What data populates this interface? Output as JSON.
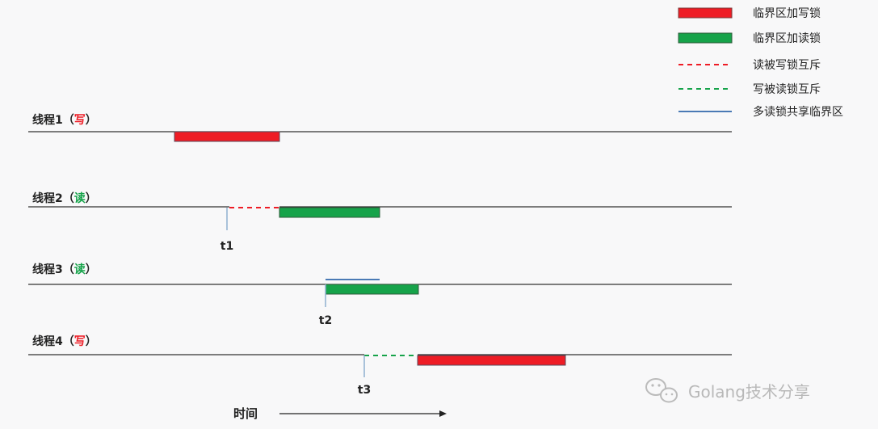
{
  "legend": {
    "write_lock": "临界区加写锁",
    "read_lock": "临界区加读锁",
    "read_blocked_by_write": "读被写锁互斥",
    "write_blocked_by_read": "写被读锁互斥",
    "multi_read_share": "多读锁共享临界区"
  },
  "threads": [
    {
      "prefix": "线程1（",
      "mode": "写",
      "suffix": "）"
    },
    {
      "prefix": "线程2（",
      "mode": "读",
      "suffix": "）"
    },
    {
      "prefix": "线程3（",
      "mode": "读",
      "suffix": "）"
    },
    {
      "prefix": "线程4（",
      "mode": "写",
      "suffix": "）"
    }
  ],
  "time_marks": [
    "t1",
    "t2",
    "t3"
  ],
  "time_axis_label": "时间",
  "watermark": "Golang技术分享",
  "colors": {
    "write": "#ee1c25",
    "read": "#16a34a",
    "share": "#4a7ab5",
    "line": "#333333"
  }
}
